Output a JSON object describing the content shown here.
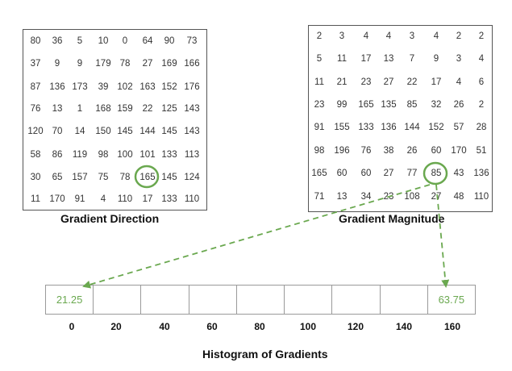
{
  "gradient_direction": {
    "title": "Gradient Direction",
    "rows": [
      [
        "80",
        "36",
        "5",
        "10",
        "0",
        "64",
        "90",
        "73"
      ],
      [
        "37",
        "9",
        "9",
        "179",
        "78",
        "27",
        "169",
        "166"
      ],
      [
        "87",
        "136",
        "173",
        "39",
        "102",
        "163",
        "152",
        "176"
      ],
      [
        "76",
        "13",
        "1",
        "168",
        "159",
        "22",
        "125",
        "143"
      ],
      [
        "120",
        "70",
        "14",
        "150",
        "145",
        "144",
        "145",
        "143"
      ],
      [
        "58",
        "86",
        "119",
        "98",
        "100",
        "101",
        "133",
        "113"
      ],
      [
        "30",
        "65",
        "157",
        "75",
        "78",
        "165",
        "145",
        "124"
      ],
      [
        "11",
        "170",
        "91",
        "4",
        "110",
        "17",
        "133",
        "110"
      ]
    ],
    "highlight": {
      "row": 6,
      "col": 5
    }
  },
  "gradient_magnitude": {
    "title": "Gradient Magnitude",
    "rows": [
      [
        "2",
        "3",
        "4",
        "4",
        "3",
        "4",
        "2",
        "2"
      ],
      [
        "5",
        "11",
        "17",
        "13",
        "7",
        "9",
        "3",
        "4"
      ],
      [
        "11",
        "21",
        "23",
        "27",
        "22",
        "17",
        "4",
        "6"
      ],
      [
        "23",
        "99",
        "165",
        "135",
        "85",
        "32",
        "26",
        "2"
      ],
      [
        "91",
        "155",
        "133",
        "136",
        "144",
        "152",
        "57",
        "28"
      ],
      [
        "98",
        "196",
        "76",
        "38",
        "26",
        "60",
        "170",
        "51"
      ],
      [
        "165",
        "60",
        "60",
        "27",
        "77",
        "85",
        "43",
        "136"
      ],
      [
        "71",
        "13",
        "34",
        "23",
        "108",
        "27",
        "48",
        "110"
      ]
    ],
    "highlight": {
      "row": 6,
      "col": 5
    }
  },
  "histogram": {
    "title": "Histogram of Gradients",
    "bin_labels": [
      "0",
      "20",
      "40",
      "60",
      "80",
      "100",
      "120",
      "140",
      "160"
    ],
    "bin_values": [
      "21.25",
      "",
      "",
      "",
      "",
      "",
      "",
      "",
      "63.75"
    ]
  },
  "colors": {
    "accent": "#6aa84f",
    "border": "#555555",
    "hist_border": "#9a9a9a"
  }
}
